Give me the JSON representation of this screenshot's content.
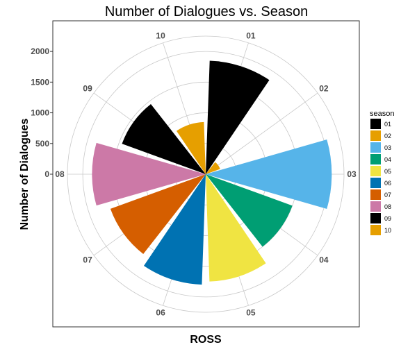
{
  "chart_data": {
    "type": "polar-bar",
    "title": "Number of Dialogues vs. Season",
    "xlabel": "ROSS",
    "ylabel": "Number of Dialogues",
    "categories": [
      "01",
      "02",
      "03",
      "04",
      "05",
      "06",
      "07",
      "08",
      "09",
      "10"
    ],
    "values": [
      1850,
      250,
      2050,
      1500,
      1750,
      1800,
      1650,
      1850,
      1450,
      850
    ],
    "colors": [
      "#000000",
      "#E69F00",
      "#56B4E9",
      "#009E73",
      "#F0E442",
      "#0072B2",
      "#D55E00",
      "#CC79A7",
      "#000000",
      "#E69F00"
    ],
    "rlim": [
      0,
      2250
    ],
    "rbreaks": [
      0,
      500,
      1000,
      1500,
      2000
    ],
    "rtick_labels": [
      "0",
      "500",
      "1000",
      "1500",
      "2000"
    ],
    "grid": true,
    "legend": {
      "title": "season",
      "position": "right",
      "entries": [
        {
          "label": "01",
          "color": "#000000"
        },
        {
          "label": "02",
          "color": "#E69F00"
        },
        {
          "label": "03",
          "color": "#56B4E9"
        },
        {
          "label": "04",
          "color": "#009E73"
        },
        {
          "label": "05",
          "color": "#F0E442"
        },
        {
          "label": "06",
          "color": "#0072B2"
        },
        {
          "label": "07",
          "color": "#D55E00"
        },
        {
          "label": "08",
          "color": "#CC79A7"
        },
        {
          "label": "09",
          "color": "#000000"
        },
        {
          "label": "10",
          "color": "#E69F00"
        }
      ]
    }
  }
}
